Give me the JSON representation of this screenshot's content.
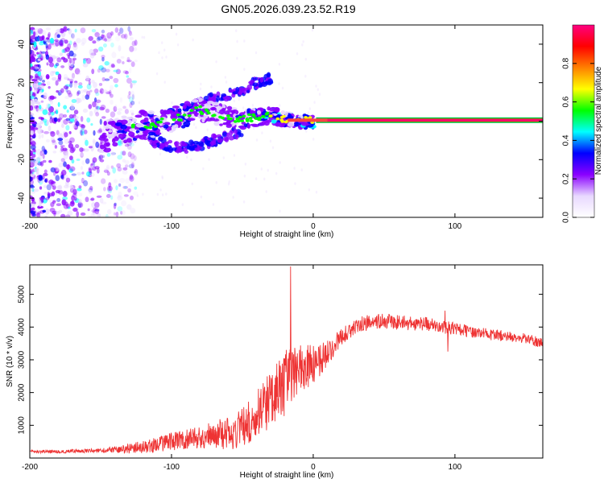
{
  "figure": {
    "title": "GN05.2026.039.23.52.R19"
  },
  "chart_data": [
    {
      "type": "heatmap",
      "title": "GN05.2026.039.23.52.R19",
      "xlabel": "Height of straight line (km)",
      "ylabel": "Frequency (Hz)",
      "xlim": [
        -200,
        162
      ],
      "ylim": [
        -50,
        50
      ],
      "x_ticks": [
        -200,
        -100,
        0,
        100
      ],
      "x_tick_labels": [
        "-200",
        "-100",
        "0",
        "100"
      ],
      "y_ticks": [
        -40,
        -20,
        0,
        20,
        40
      ],
      "y_tick_labels": [
        "-40",
        "-20",
        "0",
        "20",
        "40"
      ],
      "colorbar": {
        "label": "Normalized spectral amplitude",
        "range": [
          0,
          1
        ],
        "ticks": [
          0.0,
          0.2,
          0.4,
          0.6,
          0.8
        ],
        "tick_labels": [
          "0.0",
          "0.2",
          "0.4",
          "0.6",
          "0.8"
        ],
        "colormap": [
          "#ffffff",
          "#e8d8ff",
          "#8a00ff",
          "#0000ff",
          "#00ffff",
          "#00ff00",
          "#ffff00",
          "#ff8000",
          "#ff0000",
          "#ff0080"
        ]
      },
      "features": {
        "steady_line": {
          "x_start": 10,
          "x_end": 162,
          "frequency": 0.5,
          "amplitude": 0.97
        },
        "scatter_region": {
          "x_start": -200,
          "x_end": -125,
          "frequency_range": [
            -50,
            48
          ],
          "amplitude": 0.25
        },
        "drift_cluster": [
          {
            "x": -150,
            "f": -8,
            "a": 0.45
          },
          {
            "x": -140,
            "f": -6,
            "a": 0.5
          },
          {
            "x": -130,
            "f": -4,
            "a": 0.55
          },
          {
            "x": -120,
            "f": -2,
            "a": 0.6
          },
          {
            "x": -110,
            "f": -1,
            "a": 0.65
          },
          {
            "x": -100,
            "f": 1,
            "a": 0.55
          },
          {
            "x": -90,
            "f": 3,
            "a": 0.6
          },
          {
            "x": -80,
            "f": 6,
            "a": 0.45
          },
          {
            "x": -70,
            "f": 4,
            "a": 0.5
          },
          {
            "x": -60,
            "f": 2,
            "a": 0.55
          },
          {
            "x": -50,
            "f": 1,
            "a": 0.6
          },
          {
            "x": -40,
            "f": 2,
            "a": 0.65
          },
          {
            "x": -30,
            "f": 3,
            "a": 0.75
          },
          {
            "x": -20,
            "f": 1,
            "a": 0.8
          },
          {
            "x": -10,
            "f": 0,
            "a": 0.85
          },
          {
            "x": 0,
            "f": 0,
            "a": 0.9
          }
        ],
        "upper_arm": [
          {
            "x": -90,
            "f": 5
          },
          {
            "x": -80,
            "f": 9
          },
          {
            "x": -70,
            "f": 12
          },
          {
            "x": -60,
            "f": 14
          },
          {
            "x": -50,
            "f": 16
          },
          {
            "x": -40,
            "f": 20
          },
          {
            "x": -30,
            "f": 22
          }
        ],
        "lower_arm": [
          {
            "x": -120,
            "f": -9
          },
          {
            "x": -110,
            "f": -11
          },
          {
            "x": -100,
            "f": -13
          },
          {
            "x": -90,
            "f": -14
          },
          {
            "x": -80,
            "f": -12
          },
          {
            "x": -70,
            "f": -10
          },
          {
            "x": -60,
            "f": -7
          },
          {
            "x": -50,
            "f": -5
          }
        ]
      }
    },
    {
      "type": "line",
      "title": "",
      "xlabel": "Height of straight line (km)",
      "ylabel": "SNR (10 * v/v)",
      "xlim": [
        -200,
        162
      ],
      "ylim": [
        0,
        5900
      ],
      "x_ticks": [
        -200,
        -100,
        0,
        100
      ],
      "x_tick_labels": [
        "-200",
        "-100",
        "0",
        "100"
      ],
      "y_ticks": [
        1000,
        2000,
        3000,
        4000,
        5000
      ],
      "y_tick_labels": [
        "1000",
        "2000",
        "3000",
        "4000",
        "5000"
      ],
      "series": [
        {
          "name": "SNR",
          "color": "#ee3333",
          "trend": {
            "x": [
              -200,
              -180,
              -160,
              -140,
              -120,
              -100,
              -80,
              -70,
              -60,
              -50,
              -40,
              -30,
              -20,
              -15,
              -10,
              -5,
              0,
              10,
              20,
              30,
              40,
              50,
              60,
              70,
              80,
              90,
              100,
              110,
              120,
              130,
              140,
              150,
              162
            ],
            "y": [
              200,
              200,
              220,
              250,
              330,
              500,
              650,
              700,
              750,
              950,
              1300,
              1800,
              2300,
              2500,
              2700,
              2800,
              2850,
              3200,
              3700,
              4050,
              4150,
              4200,
              4150,
              4100,
              4100,
              4000,
              3950,
              3850,
              3800,
              3750,
              3700,
              3650,
              3500
            ]
          },
          "noise": {
            "x": [
              -200,
              -150,
              -120,
              -80,
              -50,
              -30,
              -20,
              0,
              20,
              162
            ],
            "amplitude": [
              50,
              60,
              200,
              350,
              600,
              900,
              1000,
              600,
              250,
              150
            ]
          },
          "spikes": [
            {
              "x": -16,
              "y": 5850
            },
            {
              "x": -12,
              "y": 3100
            },
            {
              "x": 93,
              "y": 4500
            },
            {
              "x": 95,
              "y": 3250
            }
          ]
        }
      ]
    }
  ]
}
